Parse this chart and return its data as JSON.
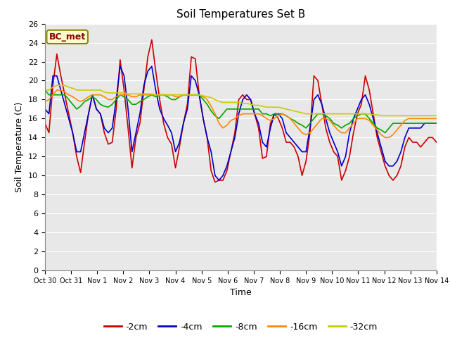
{
  "title": "Soil Temperatures Set B",
  "xlabel": "Time",
  "ylabel": "Soil Temperature (C)",
  "ylim": [
    0,
    26
  ],
  "yticks": [
    0,
    2,
    4,
    6,
    8,
    10,
    12,
    14,
    16,
    18,
    20,
    22,
    24,
    26
  ],
  "annotation": "BC_met",
  "fig_bg_color": "#ffffff",
  "plot_bg_color": "#e8e8e8",
  "grid_color": "#ffffff",
  "lines": {
    "-2cm": {
      "color": "#cc0000",
      "data": [
        15.5,
        14.5,
        19.5,
        22.8,
        20.5,
        18.5,
        16.5,
        14.5,
        12.0,
        10.3,
        13.5,
        16.5,
        18.5,
        17.0,
        16.5,
        14.5,
        13.3,
        13.5,
        17.0,
        22.2,
        19.0,
        15.0,
        10.8,
        14.0,
        15.5,
        19.0,
        22.5,
        24.3,
        21.0,
        18.0,
        15.5,
        14.0,
        13.3,
        10.8,
        13.0,
        15.5,
        17.5,
        22.5,
        22.3,
        18.5,
        16.0,
        14.0,
        10.5,
        9.3,
        9.5,
        9.5,
        10.5,
        12.5,
        14.5,
        18.0,
        18.5,
        18.0,
        18.0,
        16.5,
        15.0,
        11.8,
        12.0,
        15.5,
        16.5,
        16.0,
        15.0,
        13.5,
        13.5,
        13.0,
        12.0,
        10.0,
        11.5,
        14.5,
        20.5,
        20.0,
        17.5,
        15.0,
        13.5,
        12.5,
        12.0,
        9.5,
        10.5,
        12.0,
        14.5,
        16.5,
        17.5,
        20.5,
        19.0,
        16.5,
        14.0,
        12.5,
        11.0,
        10.0,
        9.5,
        10.0,
        11.0,
        13.0,
        14.0,
        13.5,
        13.5,
        13.0,
        13.5,
        14.0,
        14.0,
        13.5
      ]
    },
    "-4cm": {
      "color": "#0000cc",
      "data": [
        17.0,
        16.5,
        20.5,
        20.5,
        19.0,
        17.5,
        16.0,
        14.5,
        12.5,
        12.5,
        14.5,
        16.5,
        18.5,
        17.0,
        16.5,
        15.0,
        14.5,
        15.0,
        18.0,
        21.5,
        20.5,
        17.0,
        12.5,
        14.5,
        16.5,
        19.5,
        21.0,
        21.5,
        19.0,
        17.0,
        16.0,
        15.3,
        14.5,
        12.5,
        13.5,
        15.5,
        17.0,
        20.5,
        20.0,
        18.5,
        16.0,
        14.0,
        12.5,
        10.0,
        9.5,
        10.0,
        11.0,
        12.5,
        14.0,
        16.5,
        18.0,
        18.5,
        18.0,
        16.5,
        15.5,
        13.5,
        13.0,
        15.0,
        16.5,
        16.5,
        16.0,
        14.5,
        14.0,
        13.5,
        13.0,
        12.5,
        12.5,
        15.0,
        18.0,
        18.5,
        17.5,
        16.0,
        14.5,
        13.5,
        12.5,
        11.0,
        12.0,
        14.5,
        16.0,
        17.0,
        18.0,
        18.5,
        17.5,
        16.0,
        14.5,
        13.0,
        11.5,
        11.0,
        11.0,
        11.5,
        12.5,
        14.0,
        15.0,
        15.0,
        15.0,
        15.0,
        15.5,
        15.5,
        15.5,
        15.5
      ]
    },
    "-8cm": {
      "color": "#00aa00",
      "data": [
        19.0,
        18.5,
        18.5,
        18.5,
        18.5,
        18.5,
        18.0,
        17.5,
        17.0,
        17.3,
        17.8,
        18.0,
        18.3,
        18.0,
        17.5,
        17.3,
        17.2,
        17.5,
        18.0,
        18.5,
        18.3,
        18.0,
        17.5,
        17.5,
        17.8,
        18.0,
        18.3,
        18.5,
        18.3,
        18.5,
        18.5,
        18.3,
        18.0,
        18.0,
        18.3,
        18.5,
        18.5,
        18.5,
        18.5,
        18.5,
        18.0,
        17.5,
        16.8,
        16.3,
        16.0,
        16.5,
        17.0,
        17.0,
        17.0,
        17.0,
        17.0,
        17.0,
        17.0,
        17.0,
        17.0,
        16.5,
        16.5,
        16.3,
        16.5,
        16.5,
        16.5,
        16.3,
        16.0,
        15.8,
        15.5,
        15.3,
        15.0,
        15.5,
        16.0,
        16.5,
        16.5,
        16.3,
        16.0,
        15.5,
        15.3,
        15.0,
        15.3,
        15.5,
        16.0,
        16.3,
        16.5,
        16.5,
        16.0,
        15.5,
        15.0,
        14.8,
        14.5,
        15.0,
        15.5,
        15.5,
        15.5,
        15.5,
        15.5,
        15.5,
        15.5,
        15.5,
        15.5,
        15.5,
        15.5,
        15.5
      ]
    },
    "-16cm": {
      "color": "#ff8800",
      "data": [
        17.8,
        18.0,
        18.5,
        19.0,
        19.0,
        18.8,
        18.5,
        18.3,
        18.0,
        17.8,
        18.0,
        18.3,
        18.5,
        18.5,
        18.5,
        18.3,
        18.0,
        18.0,
        18.3,
        18.5,
        18.5,
        18.5,
        18.3,
        18.3,
        18.5,
        18.5,
        18.5,
        18.5,
        18.5,
        18.5,
        18.5,
        18.5,
        18.5,
        18.3,
        18.3,
        18.5,
        18.5,
        18.5,
        18.5,
        18.5,
        18.3,
        18.0,
        17.3,
        16.5,
        15.5,
        15.0,
        15.3,
        15.8,
        16.0,
        16.3,
        16.5,
        16.5,
        16.5,
        16.5,
        16.5,
        16.3,
        16.0,
        15.8,
        16.0,
        16.3,
        16.5,
        16.3,
        16.0,
        15.5,
        15.0,
        14.5,
        14.3,
        14.5,
        15.0,
        15.5,
        16.0,
        16.0,
        15.8,
        15.3,
        14.8,
        14.5,
        14.5,
        15.0,
        15.5,
        16.0,
        16.0,
        16.0,
        15.8,
        15.3,
        14.8,
        14.3,
        14.0,
        14.0,
        14.3,
        14.8,
        15.3,
        15.8,
        16.0,
        16.0,
        16.0,
        16.0,
        16.0,
        16.0,
        16.0,
        16.0
      ]
    },
    "-32cm": {
      "color": "#cccc00",
      "data": [
        19.0,
        19.0,
        19.3,
        19.5,
        19.5,
        19.5,
        19.3,
        19.2,
        19.0,
        19.0,
        19.0,
        19.0,
        19.0,
        19.0,
        19.0,
        18.8,
        18.7,
        18.7,
        18.7,
        18.7,
        18.7,
        18.6,
        18.6,
        18.6,
        18.6,
        18.6,
        18.6,
        18.6,
        18.5,
        18.5,
        18.5,
        18.5,
        18.5,
        18.5,
        18.5,
        18.5,
        18.5,
        18.5,
        18.5,
        18.5,
        18.4,
        18.3,
        18.2,
        18.0,
        17.8,
        17.7,
        17.7,
        17.7,
        17.7,
        17.7,
        17.6,
        17.6,
        17.5,
        17.4,
        17.4,
        17.3,
        17.2,
        17.2,
        17.2,
        17.2,
        17.1,
        17.0,
        16.9,
        16.8,
        16.7,
        16.6,
        16.5,
        16.5,
        16.5,
        16.5,
        16.5,
        16.5,
        16.5,
        16.5,
        16.5,
        16.5,
        16.5,
        16.5,
        16.5,
        16.5,
        16.5,
        16.5,
        16.5,
        16.4,
        16.4,
        16.3,
        16.3,
        16.3,
        16.3,
        16.3,
        16.3,
        16.3,
        16.3,
        16.3,
        16.3,
        16.3,
        16.3,
        16.3,
        16.3,
        16.3
      ]
    }
  },
  "x_tick_labels": [
    "Oct 30",
    "Oct 31",
    "Nov 1",
    "Nov 2",
    "Nov 3",
    "Nov 4",
    "Nov 5",
    "Nov 6",
    "Nov 7",
    "Nov 8",
    "Nov 9",
    "Nov 10",
    "Nov 11",
    "Nov 12",
    "Nov 13",
    "Nov 14"
  ],
  "n_points": 100,
  "legend_labels": [
    "-2cm",
    "-4cm",
    "-8cm",
    "-16cm",
    "-32cm"
  ],
  "legend_colors": [
    "#cc0000",
    "#0000cc",
    "#00aa00",
    "#ff8800",
    "#cccc00"
  ]
}
